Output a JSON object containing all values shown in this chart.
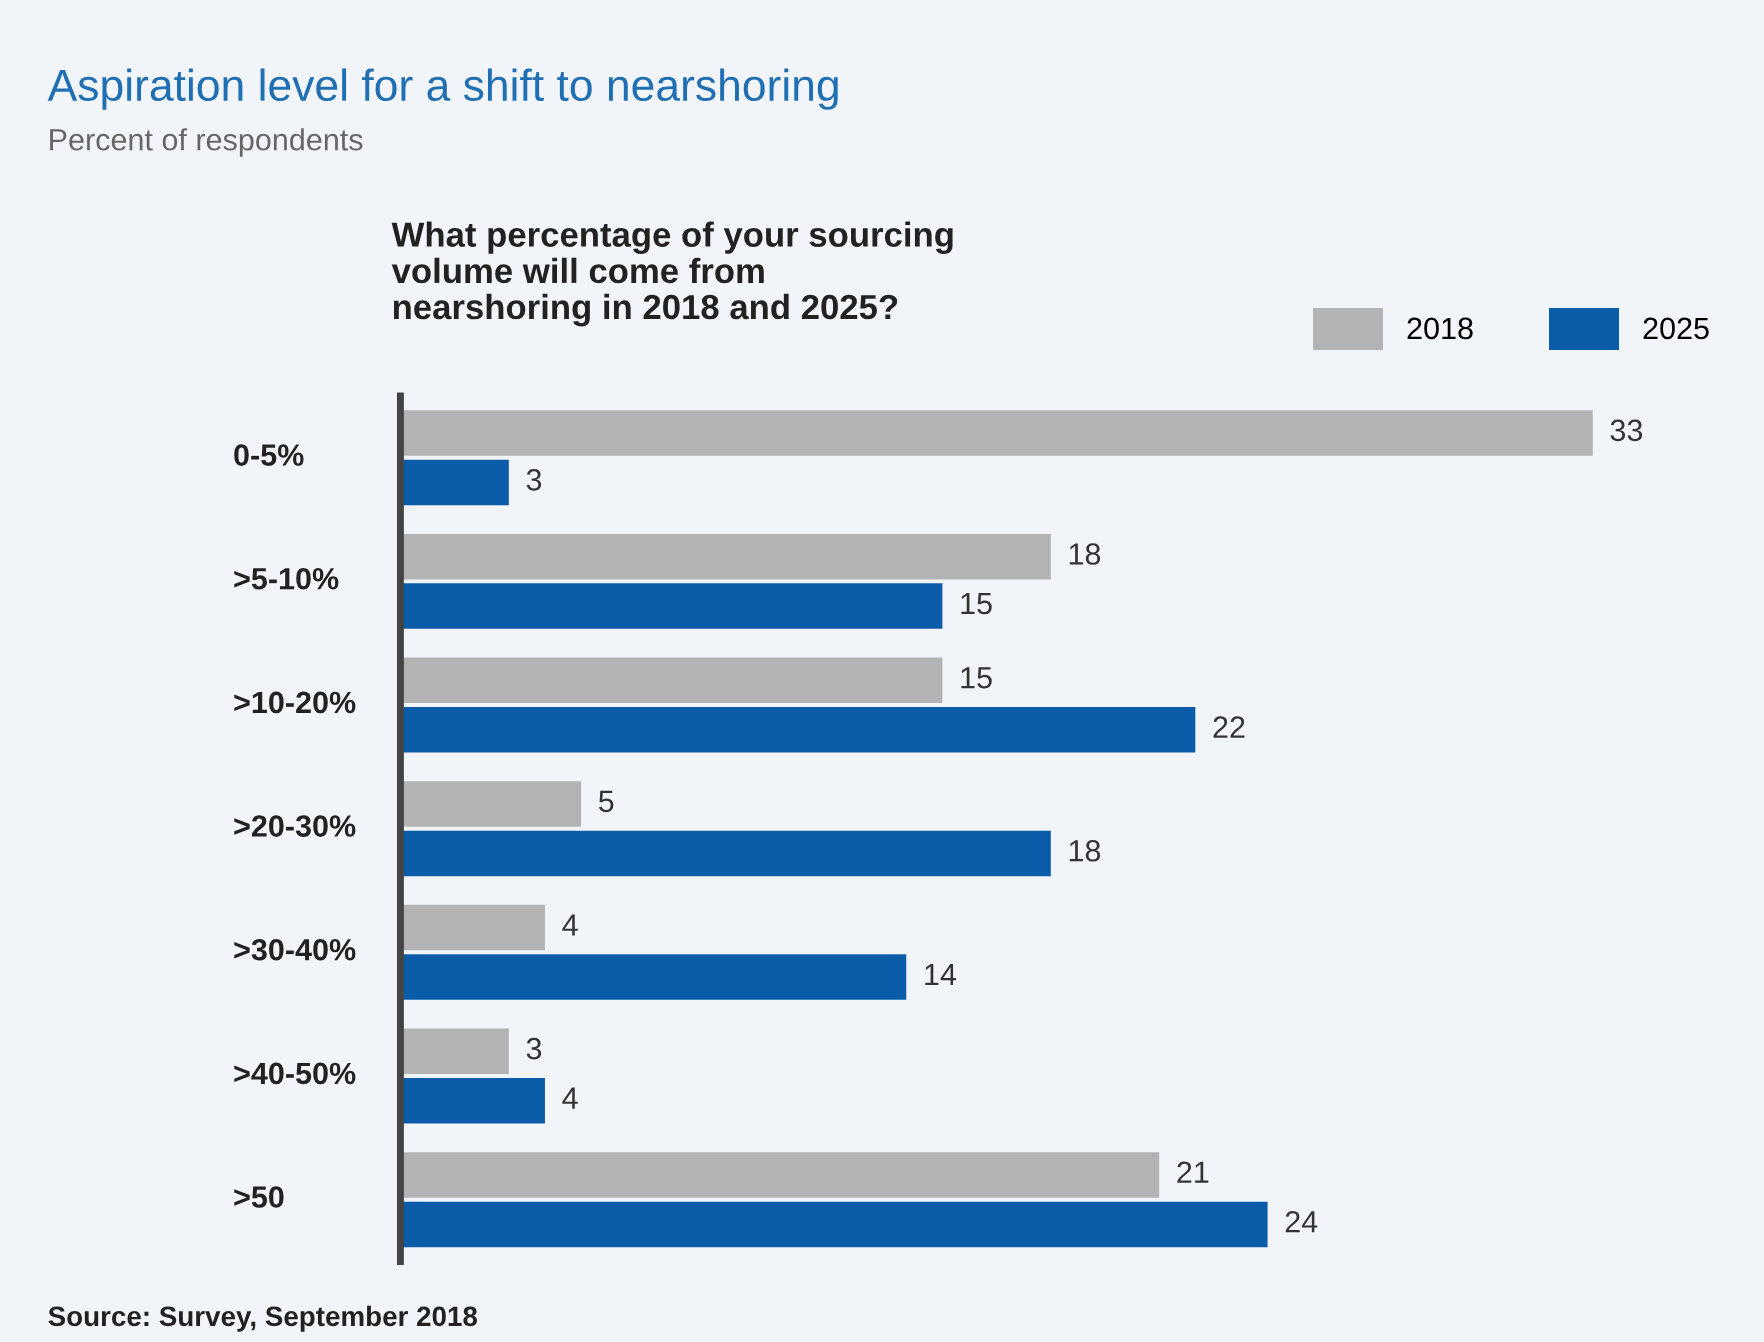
{
  "chart_data": {
    "type": "bar",
    "orientation": "horizontal",
    "title": "Aspiration level for a shift to nearshoring",
    "subtitle": "Percent of respondents",
    "categories": [
      "0-5%",
      ">5-10%",
      ">10-20%",
      ">20-30%",
      ">30-40%",
      ">40-50%",
      ">50"
    ],
    "series": [
      {
        "name": "2018",
        "color": "#b3b3b3",
        "values": [
          33,
          18,
          15,
          5,
          4,
          3,
          21
        ]
      },
      {
        "name": "2025",
        "color": "#0b5ca8",
        "values": [
          3,
          15,
          22,
          18,
          14,
          4,
          24
        ]
      }
    ],
    "data_labels": true,
    "legend": "top right",
    "annotations": [
      "What percentage of your sourcing volume will come from nearshoring in 2018 and 2025?",
      "Source: Survey, September 2018"
    ]
  }
}
